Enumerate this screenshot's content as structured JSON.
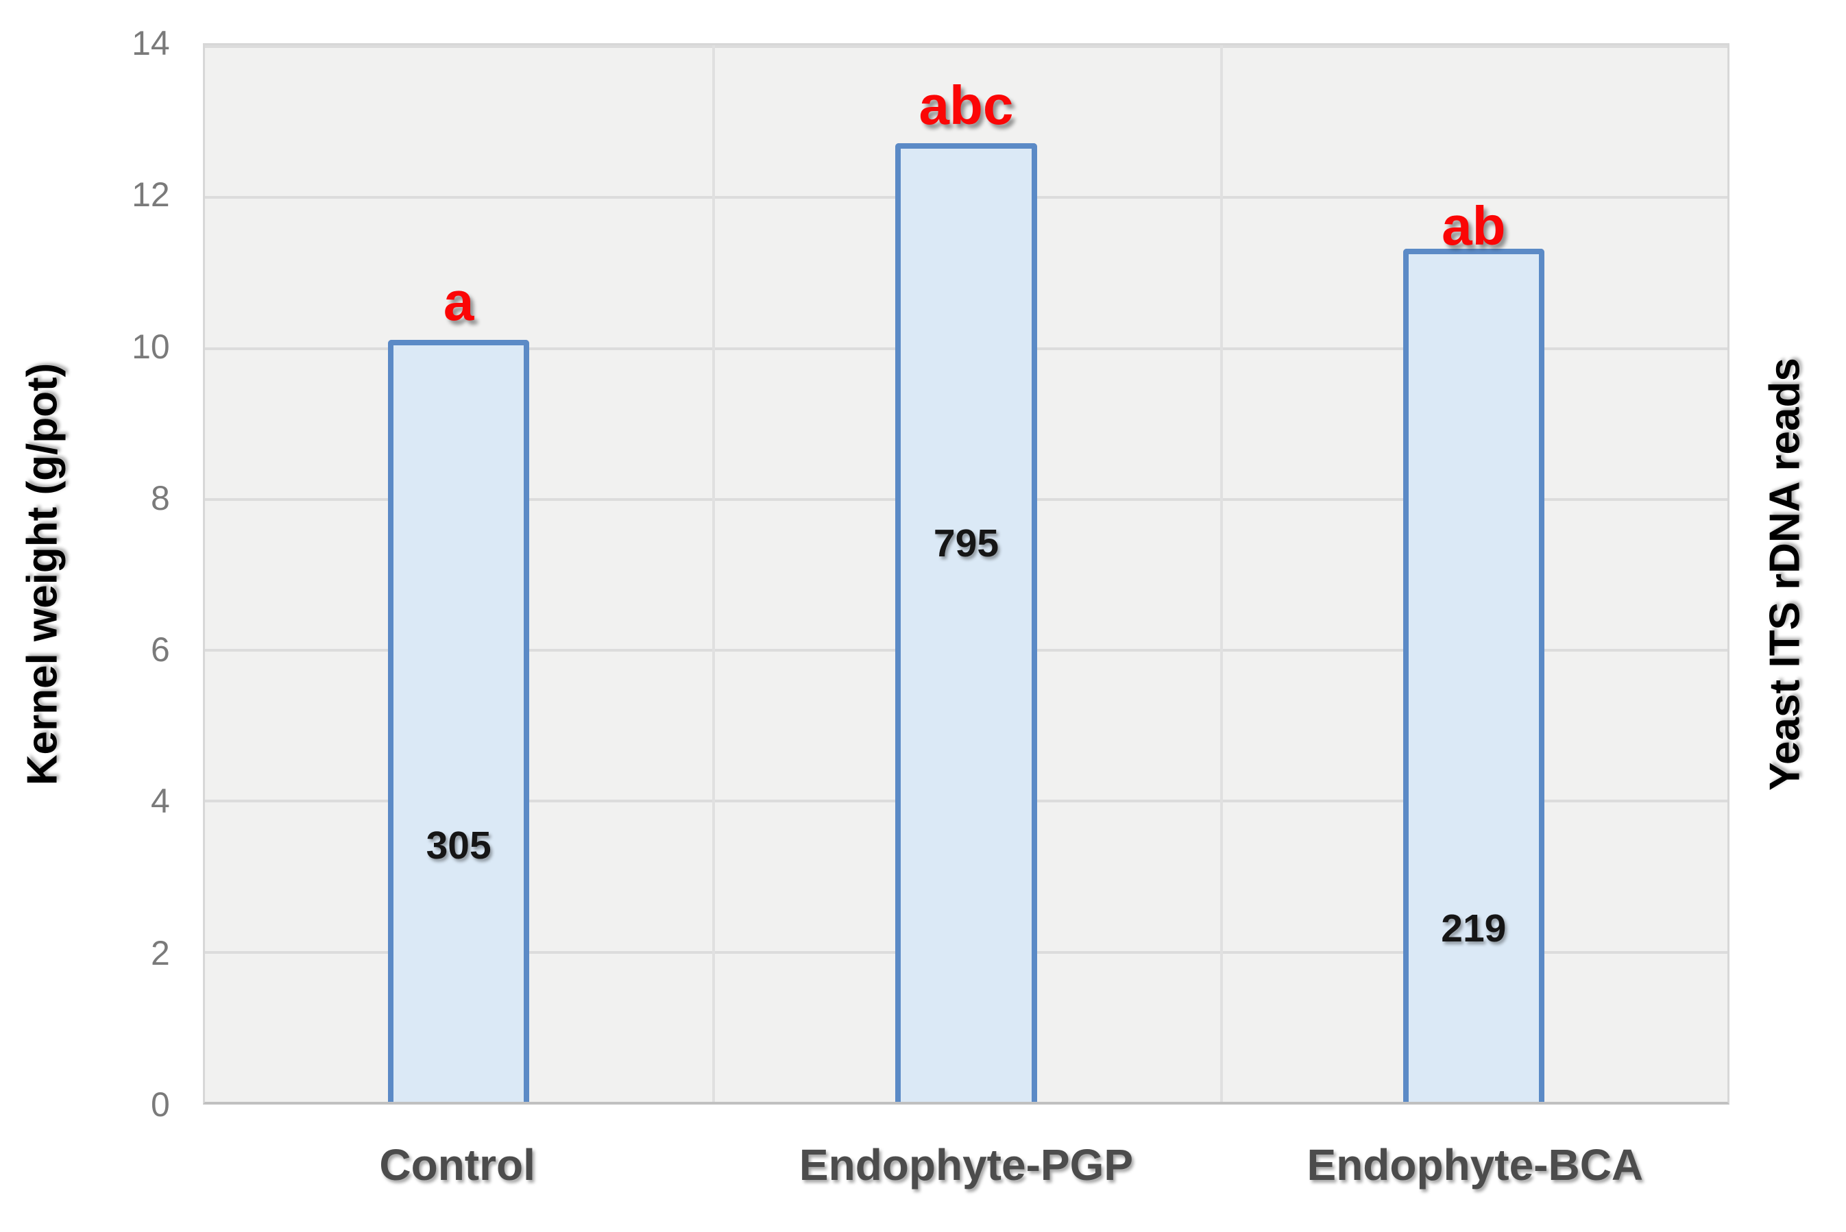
{
  "chart_data": {
    "type": "bar",
    "title": "",
    "categories": [
      "Control",
      "Endophyte-PGP",
      "Endophyte-BCA"
    ],
    "series": [
      {
        "name": "Kernel weight (g/pot)",
        "axis": "left",
        "values": [
          10.1,
          12.7,
          11.3
        ]
      },
      {
        "name": "Yeast ITS rDNA reads",
        "axis": "right",
        "values": [
          305,
          795,
          219
        ],
        "display": "in-bar-labels"
      }
    ],
    "in_bar_labels": [
      "305",
      "795",
      "219"
    ],
    "in_bar_label_y": [
      3.4,
      7.4,
      2.3
    ],
    "significance_letters": [
      "a",
      "abc",
      "ab"
    ],
    "significance_letter_y": [
      10.6,
      13.2,
      11.6
    ],
    "ylabel_left": "Kernel weight (g/pot)",
    "ylabel_right": "Yeast ITS rDNA reads",
    "xlabel": "",
    "y_ticks": [
      0,
      2,
      4,
      6,
      8,
      10,
      12,
      14
    ],
    "ylim": [
      0,
      14
    ],
    "grid": true,
    "legend": false,
    "colors": {
      "bar_fill": "#dbe9f6",
      "bar_border": "#5b8ac6",
      "significance": "#fb0606",
      "plot_background": "#f1f1f0",
      "gridline": "#dcdcdc",
      "tick_label": "#7a7a7a",
      "category_label": "#4c4c4c",
      "value_label": "#161616",
      "axis_title": "#000000"
    }
  }
}
